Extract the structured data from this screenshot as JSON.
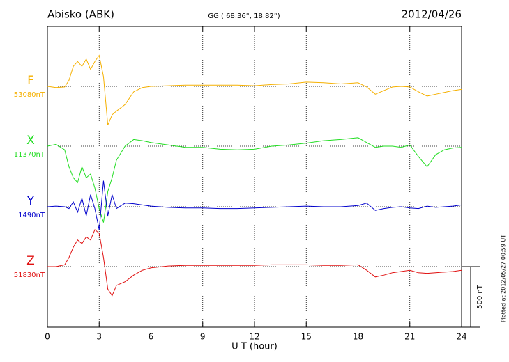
{
  "chart_data": {
    "type": "line",
    "title": "Abisko (ABK)",
    "subtitle": "GG ( 68.36°,  18.82°)",
    "date": "2012/04/26",
    "xlabel": "U T (hour)",
    "footer": "Plotted at 2012/05/27 00:59 UT",
    "xlim": [
      0,
      24
    ],
    "xticks": [
      0,
      3,
      6,
      9,
      12,
      15,
      18,
      21,
      24
    ],
    "grid": true,
    "scale_bar": {
      "value": 500,
      "label": "500 nT"
    },
    "x": [
      0,
      0.5,
      1,
      1.25,
      1.5,
      1.75,
      2,
      2.25,
      2.5,
      2.75,
      3,
      3.25,
      3.5,
      3.75,
      4,
      4.5,
      5,
      5.5,
      6,
      7,
      8,
      9,
      10,
      11,
      12,
      13,
      14,
      15,
      16,
      17,
      18,
      18.5,
      19,
      19.5,
      20,
      20.5,
      21,
      21.5,
      22,
      22.5,
      23,
      23.5,
      24
    ],
    "series": [
      {
        "name": "F",
        "color": "#f5b000",
        "baseline": {
          "value": 53080,
          "label": "53080nT"
        },
        "values": [
          0,
          -10,
          -5,
          50,
          165,
          205,
          165,
          225,
          140,
          205,
          255,
          80,
          -320,
          -235,
          -205,
          -150,
          -45,
          -10,
          0,
          5,
          10,
          10,
          10,
          10,
          5,
          15,
          20,
          35,
          30,
          20,
          30,
          -5,
          -65,
          -35,
          -5,
          0,
          -5,
          -45,
          -80,
          -65,
          -50,
          -35,
          -25
        ]
      },
      {
        "name": "X",
        "color": "#22dd22",
        "baseline": {
          "value": 11370,
          "label": "11370nT"
        },
        "values": [
          0,
          15,
          -30,
          -170,
          -260,
          -300,
          -170,
          -260,
          -230,
          -345,
          -515,
          -630,
          -375,
          -260,
          -115,
          0,
          55,
          45,
          30,
          10,
          -10,
          -10,
          -25,
          -30,
          -25,
          0,
          10,
          25,
          45,
          55,
          70,
          30,
          -10,
          0,
          0,
          -10,
          10,
          -85,
          -170,
          -70,
          -30,
          -15,
          -10
        ]
      },
      {
        "name": "Y",
        "color": "#0000cc",
        "baseline": {
          "value": 1490,
          "label": "1490nT"
        },
        "values": [
          0,
          5,
          0,
          -15,
          40,
          -45,
          70,
          -75,
          100,
          -15,
          -190,
          215,
          -75,
          100,
          -15,
          30,
          25,
          15,
          5,
          -5,
          -10,
          -10,
          -15,
          -15,
          -10,
          -5,
          0,
          5,
          0,
          0,
          10,
          30,
          -30,
          -15,
          -5,
          0,
          -10,
          -15,
          5,
          -5,
          0,
          5,
          15
        ]
      },
      {
        "name": "Z",
        "color": "#e01010",
        "baseline": {
          "value": 51830,
          "label": "51830nT"
        },
        "values": [
          0,
          0,
          15,
          75,
          160,
          220,
          190,
          245,
          220,
          305,
          275,
          75,
          -185,
          -240,
          -155,
          -125,
          -70,
          -30,
          -10,
          5,
          10,
          10,
          10,
          10,
          10,
          15,
          15,
          15,
          10,
          10,
          15,
          -30,
          -85,
          -70,
          -50,
          -40,
          -30,
          -50,
          -55,
          -50,
          -45,
          -40,
          -30
        ]
      }
    ]
  }
}
